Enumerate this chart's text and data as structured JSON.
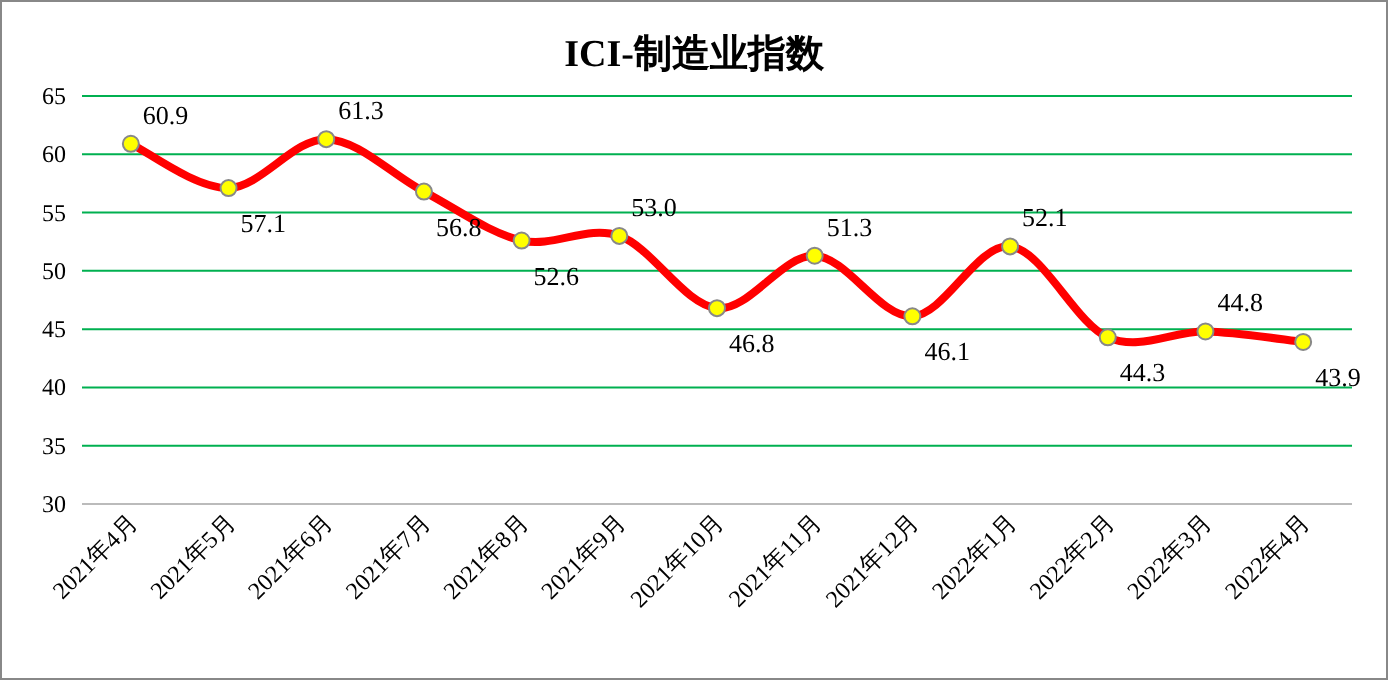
{
  "chart_data": {
    "type": "line",
    "title": "ICI-制造业指数",
    "categories": [
      "2021年4月",
      "2021年5月",
      "2021年6月",
      "2021年7月",
      "2021年8月",
      "2021年9月",
      "2021年10月",
      "2021年11月",
      "2021年12月",
      "2022年1月",
      "2022年2月",
      "2022年3月",
      "2022年4月"
    ],
    "series": [
      {
        "color": "#ff0000",
        "values": [
          60.9,
          57.1,
          61.3,
          56.8,
          52.6,
          53.0,
          46.8,
          51.3,
          46.1,
          52.1,
          44.3,
          44.8,
          43.9
        ],
        "value_labels": [
          "60.9",
          "57.1",
          "61.3",
          "56.8",
          "52.6",
          "53.0",
          "46.8",
          "51.3",
          "46.1",
          "52.1",
          "44.3",
          "44.8",
          "43.9"
        ]
      }
    ],
    "ylim": [
      30,
      65
    ],
    "yticks": [
      30,
      35,
      40,
      45,
      50,
      55,
      60,
      65
    ],
    "grid": "y",
    "marker": "circle",
    "line_style": "solid"
  }
}
